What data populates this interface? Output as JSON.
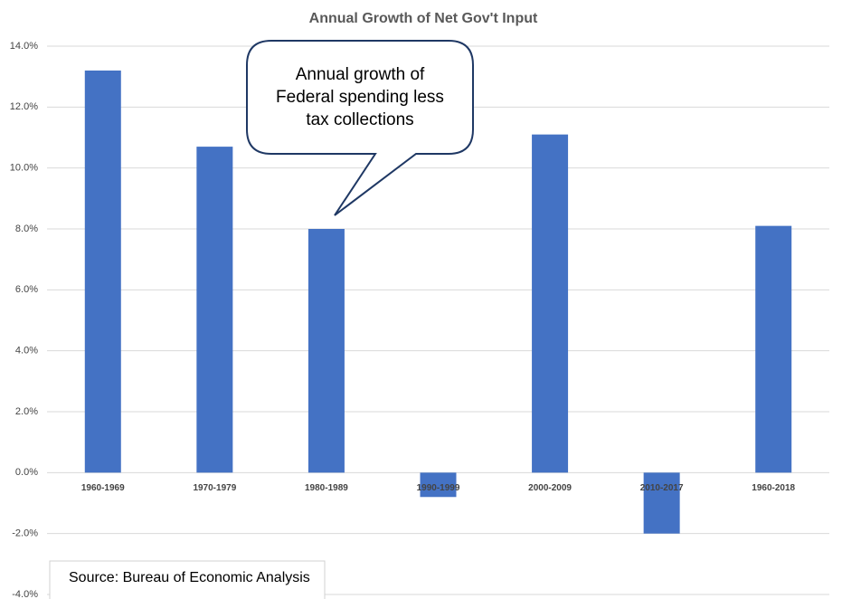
{
  "chart_data": {
    "type": "bar",
    "title": "Annual Growth of Net Gov't Input",
    "categories": [
      "1960-1969",
      "1970-1979",
      "1980-1989",
      "1990-1999",
      "2000-2009",
      "2010-2017",
      "1960-2018"
    ],
    "values": [
      13.2,
      10.7,
      8.0,
      -0.8,
      11.1,
      -2.0,
      8.1
    ],
    "color": "#4472c4",
    "ylim": [
      -4,
      14
    ],
    "yticks": [
      {
        "value": -4,
        "label": "-4.0%"
      },
      {
        "value": -2,
        "label": "-2.0%"
      },
      {
        "value": 0,
        "label": "0.0%"
      },
      {
        "value": 2,
        "label": "2.0%"
      },
      {
        "value": 4,
        "label": "4.0%"
      },
      {
        "value": 6,
        "label": "6.0%"
      },
      {
        "value": 8,
        "label": "8.0%"
      },
      {
        "value": 10,
        "label": "10.0%"
      },
      {
        "value": 12,
        "label": "12.0%"
      },
      {
        "value": 14,
        "label": "14.0%"
      }
    ],
    "grid": true,
    "annotation": [
      "Annual growth of",
      "Federal spending less",
      "tax collections"
    ],
    "source": "Source: Bureau of Economic Analysis"
  }
}
